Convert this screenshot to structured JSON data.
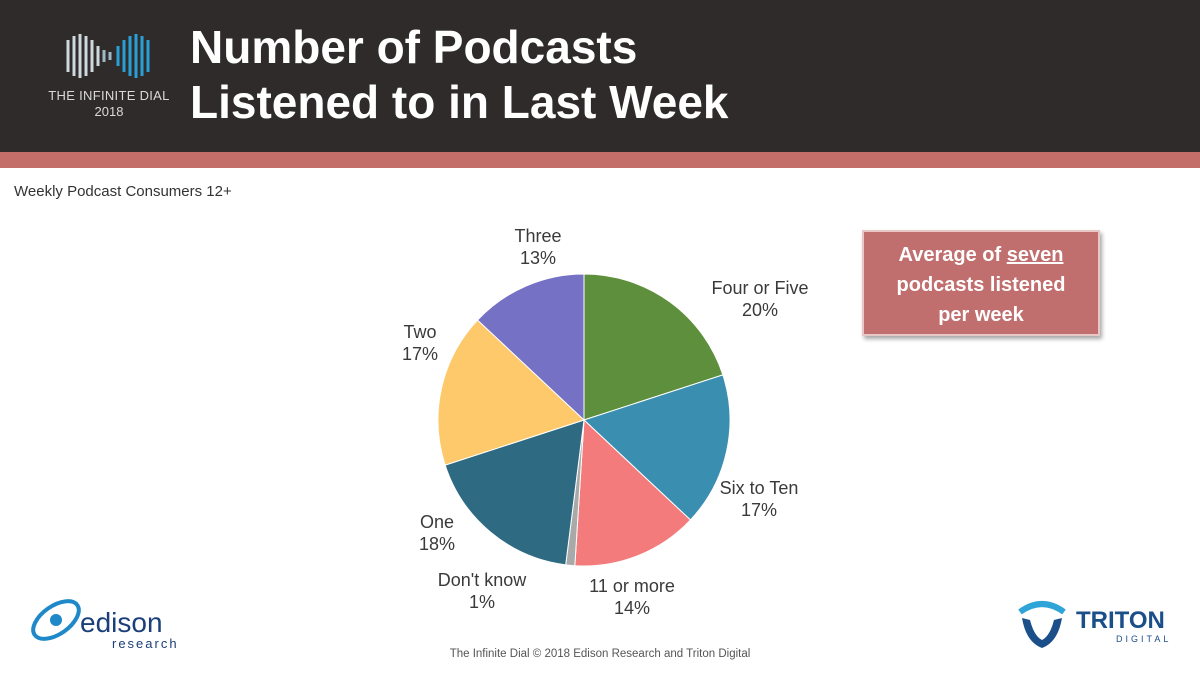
{
  "header": {
    "title_line1": "Number of Podcasts",
    "title_line2": "Listened to in Last Week",
    "brand_name": "THE INFINITE DIAL",
    "brand_year": "2018"
  },
  "subtitle": "Weekly Podcast Consumers 12+",
  "callout": {
    "prefix": "Average of",
    "emphasis": "seven",
    "line2": "podcasts listened",
    "line3": "per week"
  },
  "footer": "The Infinite Dial   © 2018 Edison Research and Triton Digital",
  "logos": {
    "edison_main": "edison",
    "edison_sub": "research",
    "triton_main": "TRITON",
    "triton_sub": "DIGITAL"
  },
  "colors": {
    "header_bg": "#2f2b2b",
    "header_stripe": "#c46e6a",
    "callout_bg": "#c06f6e"
  },
  "chart_data": {
    "type": "pie",
    "title": "",
    "start": "12 o'clock, clockwise",
    "slices": [
      {
        "label": "Four or Five",
        "value": 20,
        "display": "20%",
        "color": "#5d8f3c"
      },
      {
        "label": "Six to Ten",
        "value": 17,
        "display": "17%",
        "color": "#3a8fb0"
      },
      {
        "label": "11 or more",
        "value": 14,
        "display": "14%",
        "color": "#f47b7b"
      },
      {
        "label": "Don't know",
        "value": 1,
        "display": "1%",
        "color": "#a9a9a9"
      },
      {
        "label": "One",
        "value": 18,
        "display": "18%",
        "color": "#2e6b82"
      },
      {
        "label": "Two",
        "value": 17,
        "display": "17%",
        "color": "#fdc96a"
      },
      {
        "label": "Three",
        "value": 13,
        "display": "13%",
        "color": "#7571c4"
      }
    ]
  }
}
